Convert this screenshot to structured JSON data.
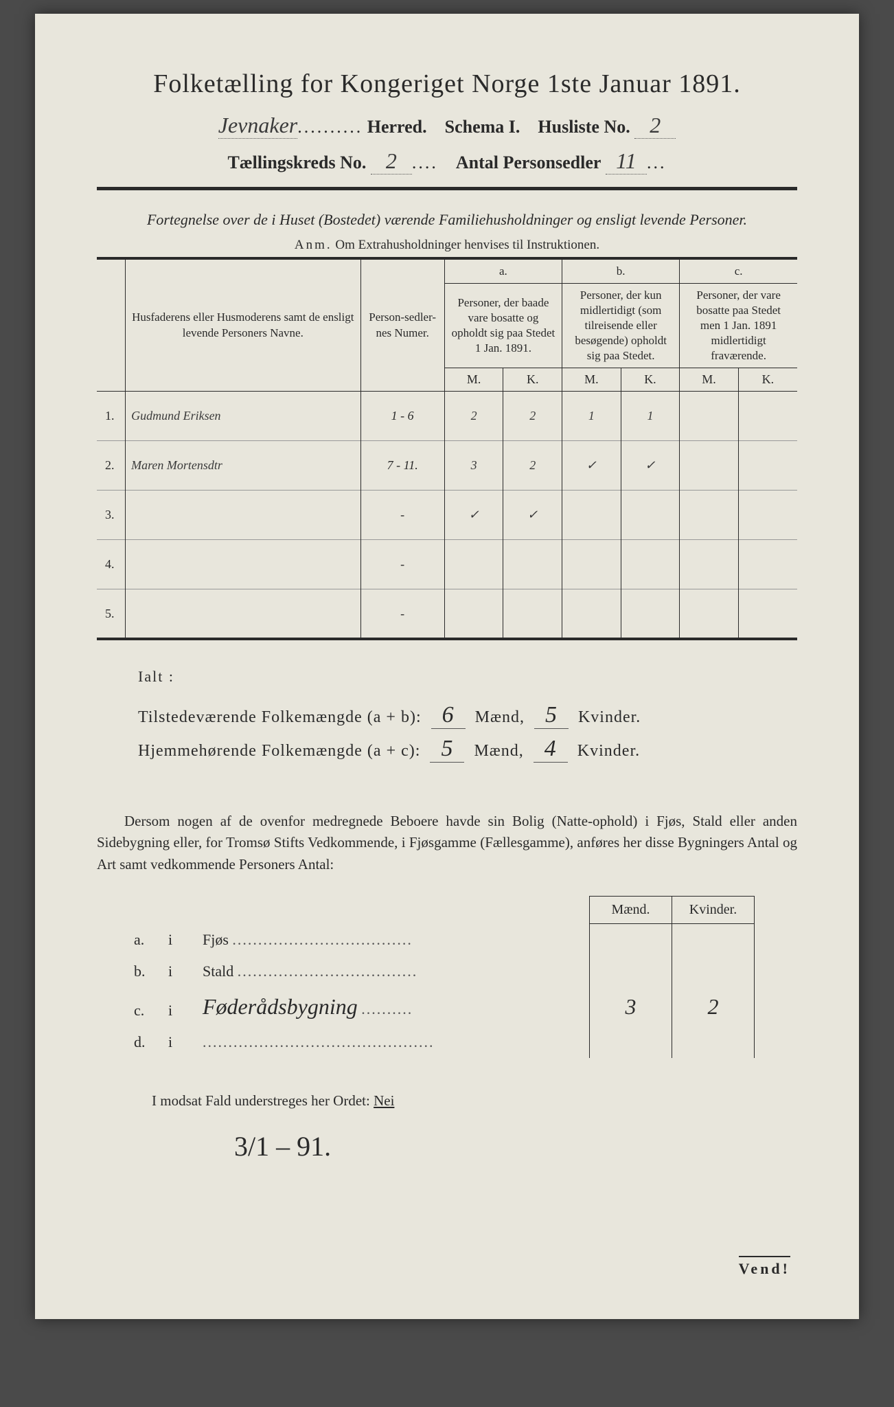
{
  "title": "Folketælling for Kongeriget Norge 1ste Januar 1891.",
  "meta": {
    "herred_value": "Jevnaker",
    "herred_label": "Herred.",
    "schema_label": "Schema I.",
    "husliste_label": "Husliste No.",
    "husliste_value": "2",
    "kreds_label": "Tællingskreds No.",
    "kreds_value": "2",
    "antal_label": "Antal Personsedler",
    "antal_value": "11"
  },
  "subtitle": "Fortegnelse over de i Huset (Bostedet) værende Familiehusholdninger og ensligt levende Personer.",
  "anm_label": "Anm.",
  "anm_text": "Om Extrahusholdninger henvises til Instruktionen.",
  "headers": {
    "names": "Husfaderens eller Husmoderens samt de ensligt levende Personers Navne.",
    "personsedler": "Person-sedler-nes Numer.",
    "a_label": "a.",
    "a_text": "Personer, der baade vare bosatte og opholdt sig paa Stedet 1 Jan. 1891.",
    "b_label": "b.",
    "b_text": "Personer, der kun midlertidigt (som tilreisende eller besøgende) opholdt sig paa Stedet.",
    "c_label": "c.",
    "c_text": "Personer, der vare bosatte paa Stedet men 1 Jan. 1891 midlertidigt fraværende.",
    "m": "M.",
    "k": "K."
  },
  "rows": [
    {
      "n": "1.",
      "name": "Gudmund Eriksen",
      "ps": "1 - 6",
      "aM": "2",
      "aK": "2",
      "bM": "1",
      "bK": "1",
      "cM": "",
      "cK": ""
    },
    {
      "n": "2.",
      "name": "Maren Mortensdtr",
      "ps": "7 - 11.",
      "aM": "3",
      "aK": "2",
      "bM": "✓",
      "bK": "✓",
      "cM": "",
      "cK": ""
    },
    {
      "n": "3.",
      "name": "",
      "ps": "-",
      "aM": "✓",
      "aK": "✓",
      "bM": "",
      "bK": "",
      "cM": "",
      "cK": ""
    },
    {
      "n": "4.",
      "name": "",
      "ps": "-",
      "aM": "",
      "aK": "",
      "bM": "",
      "bK": "",
      "cM": "",
      "cK": ""
    },
    {
      "n": "5.",
      "name": "",
      "ps": "-",
      "aM": "",
      "aK": "",
      "bM": "",
      "bK": "",
      "cM": "",
      "cK": ""
    }
  ],
  "ialt": "Ialt :",
  "totals": {
    "line1_label": "Tilstedeværende Folkemængde (a + b):",
    "line1_m": "6",
    "line1_k": "5",
    "line2_label": "Hjemmehørende Folkemængde (a + c):",
    "line2_m": "5",
    "line2_k": "4",
    "maend": "Mænd,",
    "kvinder": "Kvinder."
  },
  "para": "Dersom nogen af de ovenfor medregnede Beboere havde sin Bolig (Natte-ophold) i Fjøs, Stald eller anden Sidebygning eller, for Tromsø Stifts Vedkommende, i Fjøsgamme (Fællesgamme), anføres her disse Bygningers Antal og Art samt vedkommende Personers Antal:",
  "sidebyg": {
    "hdr_m": "Mænd.",
    "hdr_k": "Kvinder.",
    "rows": [
      {
        "l": "a.",
        "i": "i",
        "d": "Fjøs",
        "hand": "",
        "m": "",
        "k": ""
      },
      {
        "l": "b.",
        "i": "i",
        "d": "Stald",
        "hand": "",
        "m": "",
        "k": ""
      },
      {
        "l": "c.",
        "i": "i",
        "d": "",
        "hand": "Føderådsbygning",
        "m": "3",
        "k": "2"
      },
      {
        "l": "d.",
        "i": "i",
        "d": "",
        "hand": "",
        "m": "",
        "k": ""
      }
    ]
  },
  "modsat": "I modsat Fald understreges her Ordet:",
  "modsat_nei": "Nei",
  "date": "3/1 – 91.",
  "vend": "Vend!"
}
